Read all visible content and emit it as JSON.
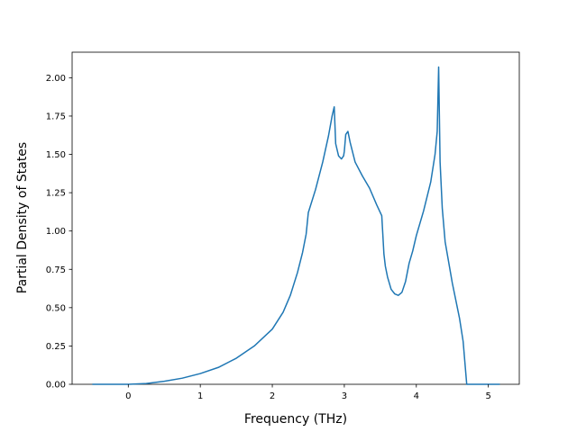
{
  "chart_data": {
    "type": "line",
    "title": "",
    "xlabel": "Frequency (THz)",
    "ylabel": "Partial Density of States",
    "xlim": [
      -0.78,
      5.43
    ],
    "ylim": [
      0.0,
      2.1666
    ],
    "xticks": [
      0,
      1,
      2,
      3,
      4,
      5
    ],
    "xtick_labels": [
      "0",
      "1",
      "2",
      "3",
      "4",
      "5"
    ],
    "yticks": [
      0.0,
      0.25,
      0.5,
      0.75,
      1.0,
      1.25,
      1.5,
      1.75,
      2.0
    ],
    "ytick_labels": [
      "0.00",
      "0.25",
      "0.50",
      "0.75",
      "1.00",
      "1.25",
      "1.50",
      "1.75",
      "2.00"
    ],
    "grid": false,
    "legend": "none",
    "series": [
      {
        "color": "#1f77b4",
        "x": [
          -0.49,
          0.0,
          0.25,
          0.5,
          0.75,
          1.0,
          1.25,
          1.5,
          1.75,
          2.0,
          2.15,
          2.25,
          2.35,
          2.42,
          2.47,
          2.5,
          2.6,
          2.7,
          2.78,
          2.83,
          2.86,
          2.88,
          2.92,
          2.96,
          2.99,
          3.0,
          3.02,
          3.05,
          3.08,
          3.15,
          3.25,
          3.35,
          3.45,
          3.52,
          3.55,
          3.57,
          3.6,
          3.65,
          3.7,
          3.75,
          3.8,
          3.85,
          3.9,
          3.95,
          4.0,
          4.1,
          4.2,
          4.26,
          4.29,
          4.31,
          4.33,
          4.36,
          4.4,
          4.5,
          4.6,
          4.65,
          4.7,
          4.75,
          5.15
        ],
        "y": [
          0.0,
          0.0,
          0.005,
          0.02,
          0.04,
          0.07,
          0.11,
          0.17,
          0.25,
          0.36,
          0.47,
          0.58,
          0.73,
          0.86,
          0.98,
          1.12,
          1.27,
          1.45,
          1.62,
          1.75,
          1.81,
          1.57,
          1.49,
          1.47,
          1.49,
          1.52,
          1.63,
          1.65,
          1.58,
          1.45,
          1.36,
          1.28,
          1.17,
          1.1,
          0.85,
          0.77,
          0.7,
          0.62,
          0.59,
          0.58,
          0.6,
          0.67,
          0.79,
          0.87,
          0.97,
          1.13,
          1.32,
          1.5,
          1.65,
          2.07,
          1.45,
          1.15,
          0.93,
          0.66,
          0.43,
          0.28,
          0.0,
          0.0,
          0.0
        ]
      }
    ]
  }
}
